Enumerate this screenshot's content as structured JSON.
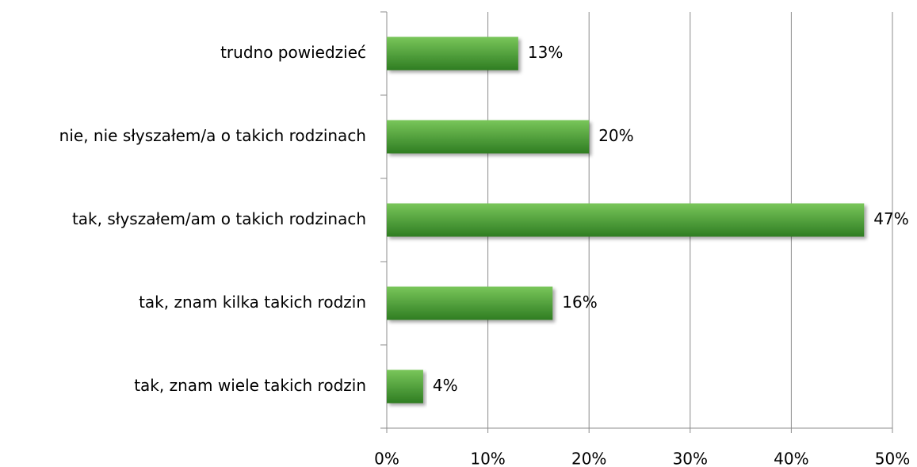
{
  "chart_data": {
    "type": "hbar",
    "categories": [
      "trudno powiedzieć",
      "nie, nie słyszałem/a o takich rodzinach",
      "tak, słyszałem/am o takich rodzinach",
      "tak, znam kilka takich rodzin",
      "tak, znam wiele takich rodzin"
    ],
    "values": [
      13,
      20,
      47.2,
      16.4,
      3.6
    ],
    "value_labels": [
      "13%",
      "20%",
      "47%",
      "16%",
      "4%"
    ],
    "color": "#4ea63a",
    "xlim": [
      0,
      50
    ],
    "xticks": [
      {
        "value": 0,
        "label": "0%"
      },
      {
        "value": 10,
        "label": "10%"
      },
      {
        "value": 20,
        "label": "20%"
      },
      {
        "value": 30,
        "label": "30%"
      },
      {
        "value": 40,
        "label": "40%"
      },
      {
        "value": 50,
        "label": "50%"
      }
    ],
    "grid": true
  }
}
